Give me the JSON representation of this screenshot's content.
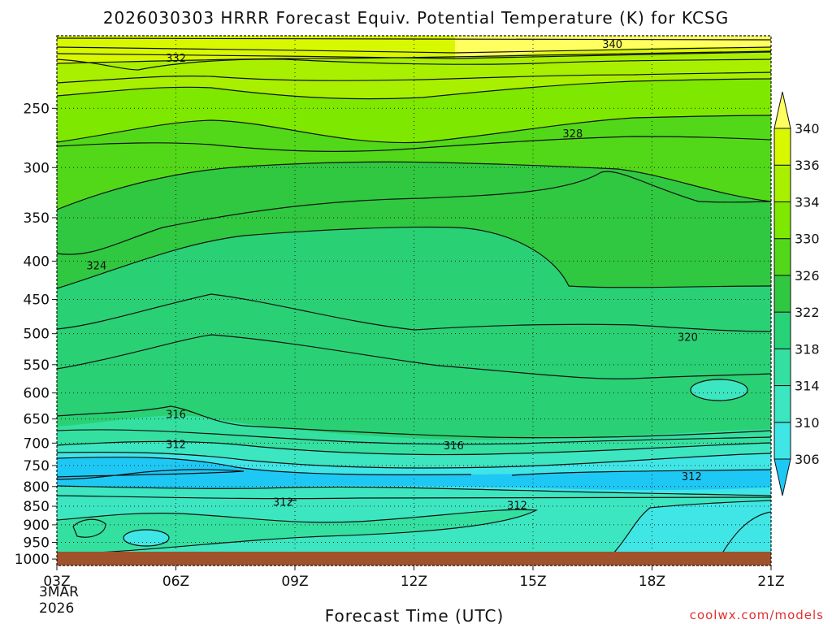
{
  "chart_data": {
    "type": "heatmap",
    "title": "2026030303 HRRR Forecast Equiv. Potential Temperature (K) for KCSG",
    "xlabel": "Forecast Time (UTC)",
    "ylabel": "",
    "x_ticks": [
      "03Z",
      "06Z",
      "09Z",
      "12Z",
      "15Z",
      "18Z",
      "21Z"
    ],
    "x_hours": [
      3,
      6,
      9,
      12,
      15,
      18,
      21
    ],
    "x_date_line1": "3MAR",
    "x_date_line2": "2026",
    "y_ticks": [
      250,
      300,
      350,
      400,
      450,
      500,
      550,
      600,
      650,
      700,
      750,
      800,
      850,
      900,
      950,
      1000
    ],
    "y_unit": "hPa",
    "y_scale": "log",
    "y_range": [
      1020,
      200
    ],
    "x_range": [
      3,
      21
    ],
    "grid": true,
    "colorbar": {
      "levels": [
        306,
        310,
        314,
        318,
        322,
        326,
        330,
        334,
        336,
        340
      ],
      "labels": [
        "306",
        "310",
        "314",
        "318",
        "322",
        "326",
        "330",
        "334",
        "336",
        "340"
      ],
      "colors": [
        "#1ec8f5",
        "#40e6e6",
        "#3ce6c0",
        "#34e0a0",
        "#28d278",
        "#30c840",
        "#52d818",
        "#7ee800",
        "#a8f000",
        "#d8f800",
        "#ffff60"
      ],
      "position": "right"
    },
    "contour_labels": [
      {
        "text": "340",
        "hour": 17.0,
        "p": 205
      },
      {
        "text": "332",
        "hour": 6.0,
        "p": 214
      },
      {
        "text": "328",
        "hour": 16.0,
        "p": 270
      },
      {
        "text": "324",
        "hour": 4.0,
        "p": 405
      },
      {
        "text": "320",
        "hour": 18.9,
        "p": 505
      },
      {
        "text": "316",
        "hour": 6.0,
        "p": 640
      },
      {
        "text": "316",
        "hour": 13.0,
        "p": 705
      },
      {
        "text": "312",
        "hour": 6.0,
        "p": 702
      },
      {
        "text": "312",
        "hour": 19.0,
        "p": 775
      },
      {
        "text": "312",
        "hour": 8.7,
        "p": 838
      },
      {
        "text": "312",
        "hour": 14.6,
        "p": 847
      }
    ],
    "surface_color": "#a0522d"
  },
  "credit": "coolwx.com/models"
}
